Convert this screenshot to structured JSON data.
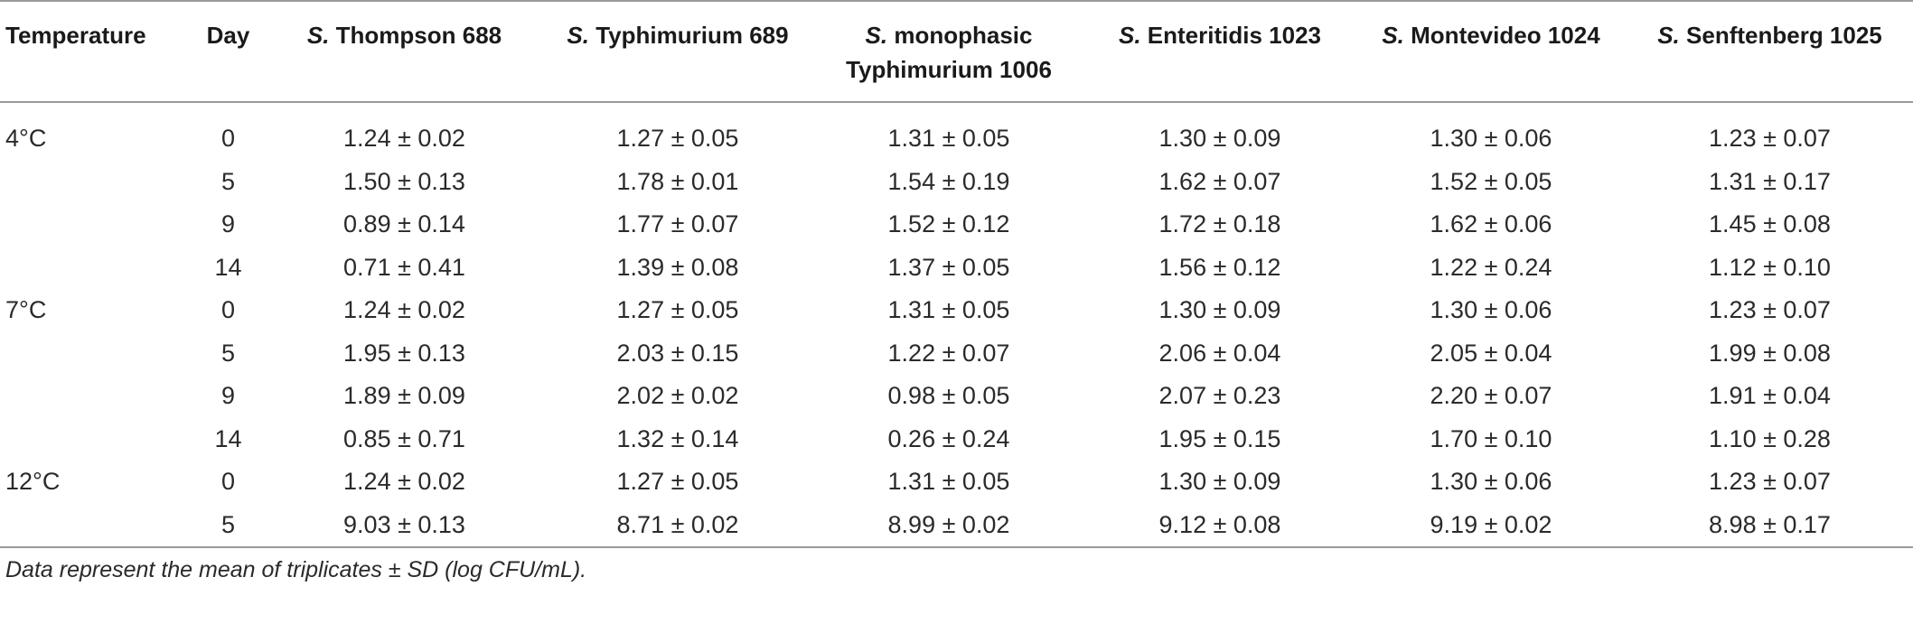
{
  "table": {
    "header": {
      "temperature": "Temperature",
      "day": "Day",
      "strains": [
        {
          "genus": "S.",
          "name": " Thompson 688"
        },
        {
          "genus": "S.",
          "name": " Typhimurium 689"
        },
        {
          "genus": "S.",
          "name": " monophasic Typhimurium 1006"
        },
        {
          "genus": "S.",
          "name": " Enteritidis 1023"
        },
        {
          "genus": "S.",
          "name": " Montevideo 1024"
        },
        {
          "genus": "S.",
          "name": " Senftenberg 1025"
        }
      ]
    },
    "rows": [
      {
        "temperature": "4°C",
        "day": "0",
        "values": [
          "1.24 ± 0.02",
          "1.27 ± 0.05",
          "1.31 ± 0.05",
          "1.30 ± 0.09",
          "1.30 ± 0.06",
          "1.23 ± 0.07"
        ]
      },
      {
        "temperature": "",
        "day": "5",
        "values": [
          "1.50 ± 0.13",
          "1.78 ± 0.01",
          "1.54 ± 0.19",
          "1.62 ± 0.07",
          "1.52 ± 0.05",
          "1.31 ± 0.17"
        ]
      },
      {
        "temperature": "",
        "day": "9",
        "values": [
          "0.89 ± 0.14",
          "1.77 ± 0.07",
          "1.52 ± 0.12",
          "1.72 ± 0.18",
          "1.62 ± 0.06",
          "1.45 ± 0.08"
        ]
      },
      {
        "temperature": "",
        "day": "14",
        "values": [
          "0.71 ± 0.41",
          "1.39 ± 0.08",
          "1.37 ± 0.05",
          "1.56 ± 0.12",
          "1.22 ± 0.24",
          "1.12 ± 0.10"
        ]
      },
      {
        "temperature": "7°C",
        "day": "0",
        "values": [
          "1.24 ± 0.02",
          "1.27 ± 0.05",
          "1.31 ± 0.05",
          "1.30 ± 0.09",
          "1.30 ± 0.06",
          "1.23 ± 0.07"
        ]
      },
      {
        "temperature": "",
        "day": "5",
        "values": [
          "1.95 ± 0.13",
          "2.03 ± 0.15",
          "1.22 ± 0.07",
          "2.06 ± 0.04",
          "2.05 ± 0.04",
          "1.99 ± 0.08"
        ]
      },
      {
        "temperature": "",
        "day": "9",
        "values": [
          "1.89 ± 0.09",
          "2.02 ± 0.02",
          "0.98 ± 0.05",
          "2.07 ± 0.23",
          "2.20 ± 0.07",
          "1.91 ± 0.04"
        ]
      },
      {
        "temperature": "",
        "day": "14",
        "values": [
          "0.85 ± 0.71",
          "1.32 ± 0.14",
          "0.26 ± 0.24",
          "1.95 ± 0.15",
          "1.70 ± 0.10",
          "1.10 ± 0.28"
        ]
      },
      {
        "temperature": "12°C",
        "day": "0",
        "values": [
          "1.24 ± 0.02",
          "1.27 ± 0.05",
          "1.31 ± 0.05",
          "1.30 ± 0.09",
          "1.30 ± 0.06",
          "1.23 ± 0.07"
        ]
      },
      {
        "temperature": "",
        "day": "5",
        "values": [
          "9.03 ± 0.13",
          "8.71 ± 0.02",
          "8.99 ± 0.02",
          "9.12 ± 0.08",
          "9.19 ± 0.02",
          "8.98 ± 0.17"
        ]
      }
    ],
    "footnote": "Data represent the mean of triplicates ± SD (log CFU/mL)."
  }
}
